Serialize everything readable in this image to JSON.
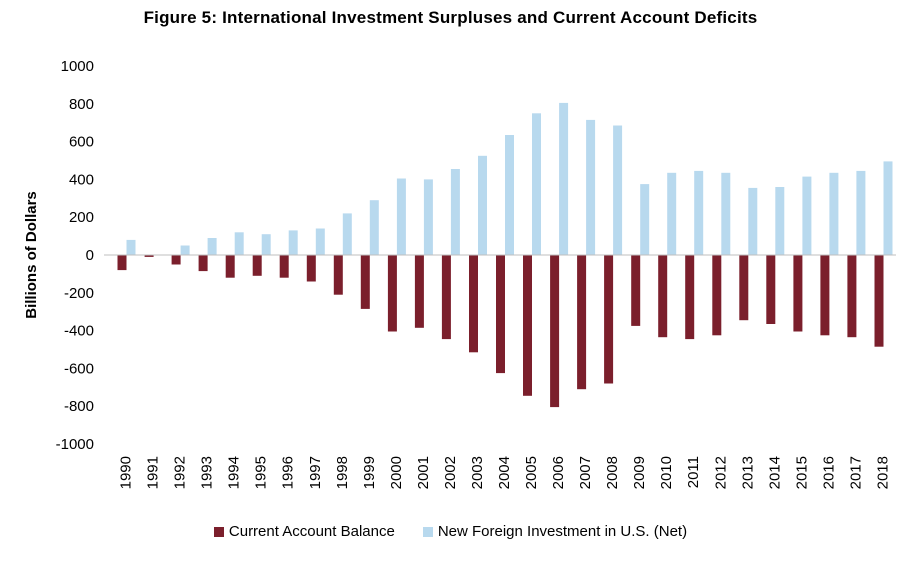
{
  "chart_data": {
    "type": "bar",
    "title": "Figure 5: International Investment Surpluses and Current Account Deficits",
    "xlabel": "",
    "ylabel": "Billions of Dollars",
    "ylim": [
      -1000,
      1000
    ],
    "yticks": [
      1000,
      800,
      600,
      400,
      200,
      0,
      -200,
      -400,
      -600,
      -800,
      -1000
    ],
    "grid": false,
    "legend_position": "bottom",
    "categories": [
      "1990",
      "1991",
      "1992",
      "1993",
      "1994",
      "1995",
      "1996",
      "1997",
      "1998",
      "1999",
      "2000",
      "2001",
      "2002",
      "2003",
      "2004",
      "2005",
      "2006",
      "2007",
      "2008",
      "2009",
      "2010",
      "2011",
      "2012",
      "2013",
      "2014",
      "2015",
      "2016",
      "2017",
      "2018"
    ],
    "series": [
      {
        "name": "Current Account Balance",
        "color": "#7b1f2c",
        "values": [
          -80,
          -10,
          -50,
          -85,
          -120,
          -110,
          -120,
          -140,
          -210,
          -285,
          -405,
          -385,
          -445,
          -515,
          -625,
          -745,
          -805,
          -710,
          -680,
          -375,
          -435,
          -445,
          -425,
          -345,
          -365,
          -405,
          -425,
          -435,
          -485
        ]
      },
      {
        "name": "New Foreign Investment in U.S. (Net)",
        "color": "#b8d9ee",
        "values": [
          80,
          0,
          50,
          90,
          120,
          110,
          130,
          140,
          220,
          290,
          405,
          400,
          455,
          525,
          635,
          750,
          805,
          715,
          685,
          375,
          435,
          445,
          435,
          355,
          360,
          415,
          435,
          445,
          495
        ]
      }
    ]
  }
}
